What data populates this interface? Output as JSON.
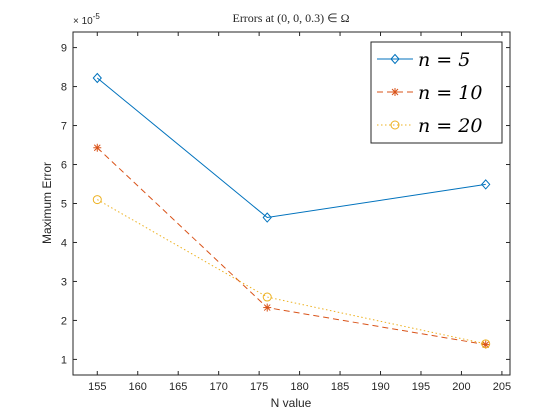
{
  "chart_data": {
    "type": "line",
    "title": "Errors at (0, 0, 0.3) ∈ Ω",
    "xlabel": "N value",
    "ylabel": "Maximum Error",
    "y_exponent": "× 10",
    "y_exponent_power": "-5",
    "xlim": [
      152,
      206
    ],
    "ylim": [
      0.6,
      9.4
    ],
    "xticks": [
      155,
      160,
      165,
      170,
      175,
      180,
      185,
      190,
      195,
      200,
      205
    ],
    "yticks": [
      1,
      2,
      3,
      4,
      5,
      6,
      7,
      8,
      9
    ],
    "grid": false,
    "legend_position": "top-right",
    "x": [
      155,
      176,
      203
    ],
    "series": [
      {
        "name": "n = 5",
        "values": [
          8.22,
          4.64,
          5.49
        ],
        "color": "#0072BD",
        "line_style": "solid",
        "marker": "diamond"
      },
      {
        "name": "n = 10",
        "values": [
          6.43,
          2.33,
          1.38
        ],
        "color": "#D95319",
        "line_style": "dashed",
        "marker": "asterisk"
      },
      {
        "name": "n = 20",
        "values": [
          5.1,
          2.6,
          1.4
        ],
        "color": "#EDB120",
        "line_style": "dotted",
        "marker": "circle"
      }
    ]
  }
}
